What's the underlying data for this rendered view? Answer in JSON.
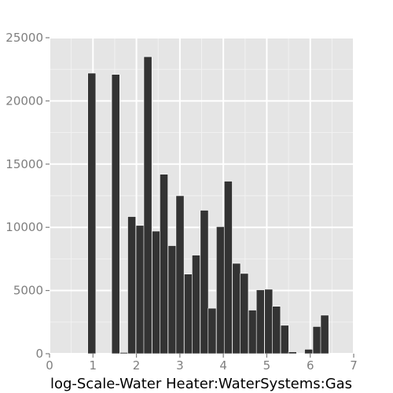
{
  "chart_data": {
    "type": "bar",
    "title": "",
    "xlabel": "log-Scale-Water Heater:WaterSystems:Gas",
    "ylabel": "",
    "xlim": [
      0,
      7
    ],
    "ylim": [
      0,
      25000
    ],
    "x_ticks": [
      0,
      1,
      2,
      3,
      4,
      5,
      6,
      7
    ],
    "y_ticks": [
      0,
      5000,
      10000,
      15000,
      20000,
      25000
    ],
    "grid": true,
    "legend": "none",
    "bin_width": 0.185,
    "bins": [
      {
        "x_start": 0.88,
        "value": 22200
      },
      {
        "x_start": 1.43,
        "value": 22100
      },
      {
        "x_start": 1.62,
        "value": 100
      },
      {
        "x_start": 1.8,
        "value": 10850
      },
      {
        "x_start": 1.99,
        "value": 10150
      },
      {
        "x_start": 2.17,
        "value": 23500
      },
      {
        "x_start": 2.36,
        "value": 9700
      },
      {
        "x_start": 2.54,
        "value": 14200
      },
      {
        "x_start": 2.73,
        "value": 8550
      },
      {
        "x_start": 2.91,
        "value": 12500
      },
      {
        "x_start": 3.1,
        "value": 6300
      },
      {
        "x_start": 3.28,
        "value": 7800
      },
      {
        "x_start": 3.47,
        "value": 11350
      },
      {
        "x_start": 3.65,
        "value": 3600
      },
      {
        "x_start": 3.84,
        "value": 10050
      },
      {
        "x_start": 4.02,
        "value": 13650
      },
      {
        "x_start": 4.21,
        "value": 7150
      },
      {
        "x_start": 4.39,
        "value": 6350
      },
      {
        "x_start": 4.58,
        "value": 3450
      },
      {
        "x_start": 4.76,
        "value": 5050
      },
      {
        "x_start": 4.95,
        "value": 5100
      },
      {
        "x_start": 5.13,
        "value": 3750
      },
      {
        "x_start": 5.32,
        "value": 2250
      },
      {
        "x_start": 5.5,
        "value": 150
      },
      {
        "x_start": 5.87,
        "value": 350
      },
      {
        "x_start": 6.06,
        "value": 2150
      },
      {
        "x_start": 6.24,
        "value": 3050
      }
    ]
  },
  "colors": {
    "panel_background": "#e5e5e5",
    "grid_major": "#ffffff",
    "grid_minor": "#f2f2f2",
    "bar_fill": "#333333",
    "tick_text": "#7f7f7f"
  }
}
